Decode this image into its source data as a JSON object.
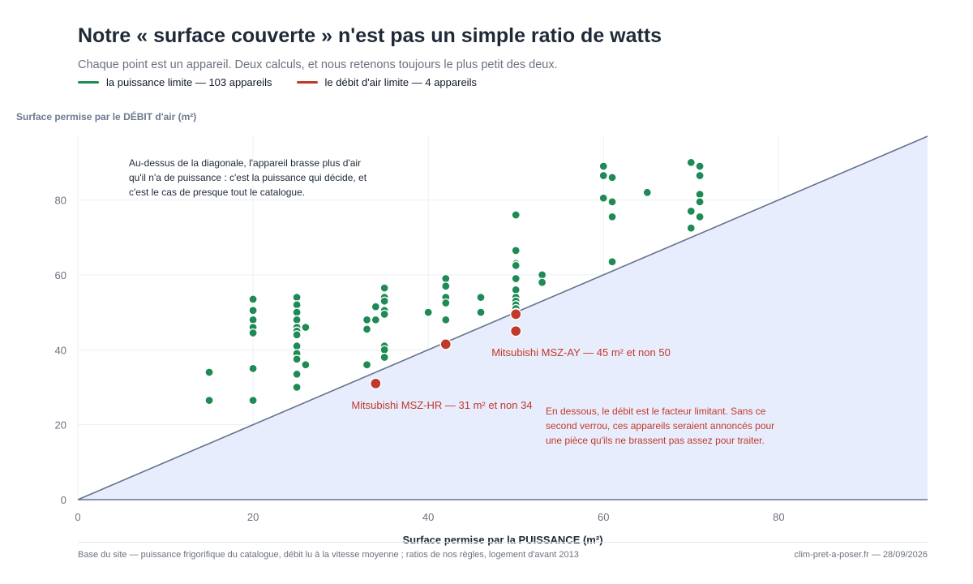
{
  "title": "Notre « surface couverte » n'est pas un simple ratio de watts",
  "subtitle": "Chaque point est un appareil. Deux calculs, et nous retenons toujours le plus petit des deux.",
  "legend": [
    {
      "label": "la puissance limite — 103 appareils",
      "color": "#1e8a55"
    },
    {
      "label": "le débit d'air limite — 4 appareils",
      "color": "#c0392b"
    }
  ],
  "footer": {
    "left": "Base du site — puissance frigorifique du catalogue, débit lu à la vitesse moyenne ; ratios de nos règles, logement d'avant 2013",
    "right": "clim-pret-a-poser.fr — 28/09/2026"
  },
  "colors": {
    "power": "#1e8a55",
    "airflow": "#c0392b",
    "diagonal": "#64748b",
    "region": "#e8edfd",
    "grid": "#eceff3"
  },
  "chart_data": {
    "type": "scatter",
    "xlabel": "Surface permise par la PUISSANCE (m²)",
    "ylabel": "Surface permise par le DÉBIT d'air (m²)",
    "xlim": [
      0,
      97
    ],
    "ylim": [
      0,
      97
    ],
    "xticks": [
      0,
      20,
      40,
      60,
      80
    ],
    "yticks": [
      0,
      20,
      40,
      60,
      80
    ],
    "grid": true,
    "diagonal": "y = x",
    "series": [
      {
        "name": "la puissance limite — 103 appareils",
        "color": "#1e8a55",
        "points": [
          [
            15,
            34
          ],
          [
            15,
            26.5
          ],
          [
            20,
            53.5
          ],
          [
            20,
            50.5
          ],
          [
            20,
            48
          ],
          [
            20,
            46
          ],
          [
            20,
            44.5
          ],
          [
            20,
            35
          ],
          [
            20,
            26.5
          ],
          [
            25,
            54
          ],
          [
            25,
            52
          ],
          [
            25,
            50
          ],
          [
            25,
            48
          ],
          [
            25,
            46
          ],
          [
            25,
            45
          ],
          [
            25,
            44
          ],
          [
            25,
            41
          ],
          [
            25,
            39
          ],
          [
            25,
            37.5
          ],
          [
            25,
            33.5
          ],
          [
            25,
            30
          ],
          [
            26,
            46
          ],
          [
            26,
            36
          ],
          [
            33,
            48
          ],
          [
            33,
            45.5
          ],
          [
            33,
            36
          ],
          [
            34,
            51.5
          ],
          [
            34,
            48
          ],
          [
            35,
            56.5
          ],
          [
            35,
            54
          ],
          [
            35,
            53
          ],
          [
            35,
            50.5
          ],
          [
            35,
            49.5
          ],
          [
            35,
            41
          ],
          [
            35,
            40
          ],
          [
            35,
            38
          ],
          [
            40,
            50
          ],
          [
            42,
            59
          ],
          [
            42,
            57
          ],
          [
            42,
            54
          ],
          [
            42,
            52.5
          ],
          [
            42,
            48
          ],
          [
            46,
            54
          ],
          [
            46,
            50
          ],
          [
            50,
            76
          ],
          [
            50,
            66.5
          ],
          [
            50,
            63
          ],
          [
            50,
            62.5
          ],
          [
            50,
            59
          ],
          [
            50,
            56
          ],
          [
            50,
            54
          ],
          [
            50,
            53
          ],
          [
            50,
            52
          ],
          [
            50,
            51
          ],
          [
            50,
            50
          ],
          [
            53,
            60
          ],
          [
            53,
            58
          ],
          [
            60,
            89
          ],
          [
            60,
            86.5
          ],
          [
            60,
            80.5
          ],
          [
            61,
            86
          ],
          [
            61,
            79.5
          ],
          [
            61,
            75.5
          ],
          [
            61,
            63.5
          ],
          [
            65,
            82
          ],
          [
            70,
            90
          ],
          [
            70,
            77
          ],
          [
            70,
            72.5
          ],
          [
            71,
            89
          ],
          [
            71,
            86.5
          ],
          [
            71,
            81.5
          ],
          [
            71,
            79.5
          ],
          [
            71,
            75.5
          ]
        ]
      },
      {
        "name": "le débit d'air limite — 4 appareils",
        "color": "#c0392b",
        "points": [
          [
            34,
            31
          ],
          [
            42,
            41.5
          ],
          [
            50,
            49.5
          ],
          [
            50,
            45
          ]
        ]
      }
    ],
    "point_labels": [
      {
        "text": "Mitsubishi MSZ-HR — 31 m² et non 34",
        "x": 34,
        "y": 31
      },
      {
        "text": "Mitsubishi MSZ-AY — 45 m² et non 50",
        "x": 50,
        "y": 45
      }
    ],
    "annotations": {
      "above": [
        "Au-dessus de la diagonale, l'appareil brasse plus d'air",
        "qu'il n'a de puissance : c'est la puissance qui décide, et",
        "c'est le cas de presque tout le catalogue."
      ],
      "below": [
        "En dessous, le débit est le facteur limitant. Sans ce",
        "second verrou, ces appareils seraient annoncés pour",
        "une pièce qu'ils ne brassent pas assez pour traiter."
      ]
    }
  }
}
